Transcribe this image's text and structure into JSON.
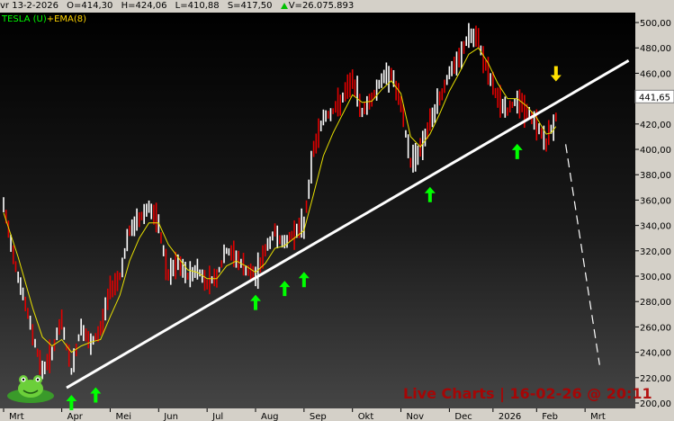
{
  "header": {
    "date": "vr 13-2-2026",
    "open": "O=414,30",
    "high": "H=424,06",
    "low": "L=410,88",
    "close": "S=417,50",
    "volume": "V=26.075.893"
  },
  "legend": {
    "symbol": "TESLA (U)",
    "indicator": "+EMA(8)"
  },
  "watermark": "Live Charts | 16-02-26 @ 20:11",
  "last_price_label": "441,65",
  "colors": {
    "bar": "#e00000",
    "ema": "#e8e000",
    "trendline": "#ffffff",
    "up_arrow": "#00ff00",
    "down_arrow": "#ffe000",
    "axis_bg": "#d4d0c8"
  },
  "chart_data": {
    "type": "bar",
    "title": "",
    "series": [
      {
        "name": "TESLA (U)",
        "kind": "price"
      },
      {
        "name": "EMA(8)",
        "kind": "ema"
      }
    ],
    "ylim": [
      200,
      505
    ],
    "y_ticks": [
      200,
      220,
      240,
      260,
      280,
      300,
      320,
      340,
      360,
      380,
      400,
      420,
      440,
      460,
      480,
      500
    ],
    "y_tick_labels": [
      "200,00",
      "220,00",
      "240,00",
      "260,00",
      "280,00",
      "300,00",
      "320,00",
      "340,00",
      "360,00",
      "380,00",
      "400,00",
      "420,00",
      "440,00",
      "460,00",
      "480,00",
      "500,00"
    ],
    "x_tick_labels": [
      "Mrt",
      "Apr",
      "Mei",
      "Jun",
      "Jul",
      "Aug",
      "Sep",
      "Okt",
      "Nov",
      "Dec",
      "2026",
      "Feb",
      "Mrt"
    ],
    "x_tick_index": [
      0,
      12,
      22,
      32,
      42,
      52,
      62,
      72,
      82,
      92,
      101,
      110,
      120
    ],
    "n_slots": 130,
    "price_path": [
      [
        0,
        355
      ],
      [
        3,
        300
      ],
      [
        6,
        255
      ],
      [
        8,
        225
      ],
      [
        10,
        240
      ],
      [
        12,
        265
      ],
      [
        14,
        225
      ],
      [
        16,
        260
      ],
      [
        18,
        245
      ],
      [
        20,
        258
      ],
      [
        22,
        290
      ],
      [
        24,
        300
      ],
      [
        26,
        335
      ],
      [
        28,
        345
      ],
      [
        30,
        355
      ],
      [
        32,
        340
      ],
      [
        34,
        300
      ],
      [
        36,
        310
      ],
      [
        38,
        300
      ],
      [
        40,
        305
      ],
      [
        42,
        295
      ],
      [
        44,
        300
      ],
      [
        46,
        320
      ],
      [
        48,
        315
      ],
      [
        50,
        305
      ],
      [
        52,
        300
      ],
      [
        54,
        320
      ],
      [
        56,
        335
      ],
      [
        58,
        325
      ],
      [
        60,
        335
      ],
      [
        62,
        340
      ],
      [
        64,
        400
      ],
      [
        66,
        425
      ],
      [
        68,
        430
      ],
      [
        70,
        440
      ],
      [
        72,
        455
      ],
      [
        74,
        430
      ],
      [
        76,
        440
      ],
      [
        78,
        455
      ],
      [
        80,
        460
      ],
      [
        82,
        435
      ],
      [
        84,
        390
      ],
      [
        86,
        400
      ],
      [
        88,
        420
      ],
      [
        90,
        440
      ],
      [
        92,
        460
      ],
      [
        94,
        470
      ],
      [
        96,
        490
      ],
      [
        98,
        485
      ],
      [
        100,
        460
      ],
      [
        102,
        440
      ],
      [
        104,
        430
      ],
      [
        106,
        440
      ],
      [
        108,
        430
      ],
      [
        110,
        420
      ],
      [
        112,
        405
      ],
      [
        113,
        415
      ],
      [
        114,
        425
      ]
    ],
    "ema_path": [
      [
        0,
        350
      ],
      [
        3,
        315
      ],
      [
        6,
        275
      ],
      [
        8,
        252
      ],
      [
        10,
        245
      ],
      [
        12,
        250
      ],
      [
        14,
        240
      ],
      [
        16,
        245
      ],
      [
        18,
        248
      ],
      [
        20,
        250
      ],
      [
        22,
        268
      ],
      [
        24,
        285
      ],
      [
        26,
        312
      ],
      [
        28,
        330
      ],
      [
        30,
        342
      ],
      [
        32,
        342
      ],
      [
        34,
        325
      ],
      [
        36,
        315
      ],
      [
        38,
        305
      ],
      [
        40,
        303
      ],
      [
        42,
        298
      ],
      [
        44,
        298
      ],
      [
        46,
        308
      ],
      [
        48,
        312
      ],
      [
        50,
        308
      ],
      [
        52,
        303
      ],
      [
        54,
        310
      ],
      [
        56,
        322
      ],
      [
        58,
        324
      ],
      [
        60,
        330
      ],
      [
        62,
        336
      ],
      [
        64,
        365
      ],
      [
        66,
        395
      ],
      [
        68,
        413
      ],
      [
        70,
        428
      ],
      [
        72,
        443
      ],
      [
        74,
        437
      ],
      [
        76,
        438
      ],
      [
        78,
        447
      ],
      [
        80,
        454
      ],
      [
        82,
        444
      ],
      [
        84,
        410
      ],
      [
        86,
        402
      ],
      [
        88,
        412
      ],
      [
        90,
        428
      ],
      [
        92,
        446
      ],
      [
        94,
        460
      ],
      [
        96,
        475
      ],
      [
        98,
        480
      ],
      [
        100,
        468
      ],
      [
        102,
        452
      ],
      [
        104,
        440
      ],
      [
        106,
        440
      ],
      [
        108,
        434
      ],
      [
        110,
        425
      ],
      [
        112,
        412
      ],
      [
        113,
        413
      ],
      [
        114,
        418
      ]
    ],
    "trendline": {
      "start": [
        13,
        212
      ],
      "end": [
        129,
        470
      ]
    },
    "projection": {
      "start": [
        116,
        404
      ],
      "end": [
        123,
        230
      ]
    },
    "up_arrows": [
      {
        "x": 14,
        "y": 200
      },
      {
        "x": 19,
        "y": 206
      },
      {
        "x": 52,
        "y": 279
      },
      {
        "x": 58,
        "y": 290
      },
      {
        "x": 62,
        "y": 297
      },
      {
        "x": 88,
        "y": 364
      },
      {
        "x": 106,
        "y": 398
      }
    ],
    "down_arrows": [
      {
        "x": 114,
        "y": 460
      }
    ],
    "grid": false,
    "legend_position": "top-left"
  }
}
